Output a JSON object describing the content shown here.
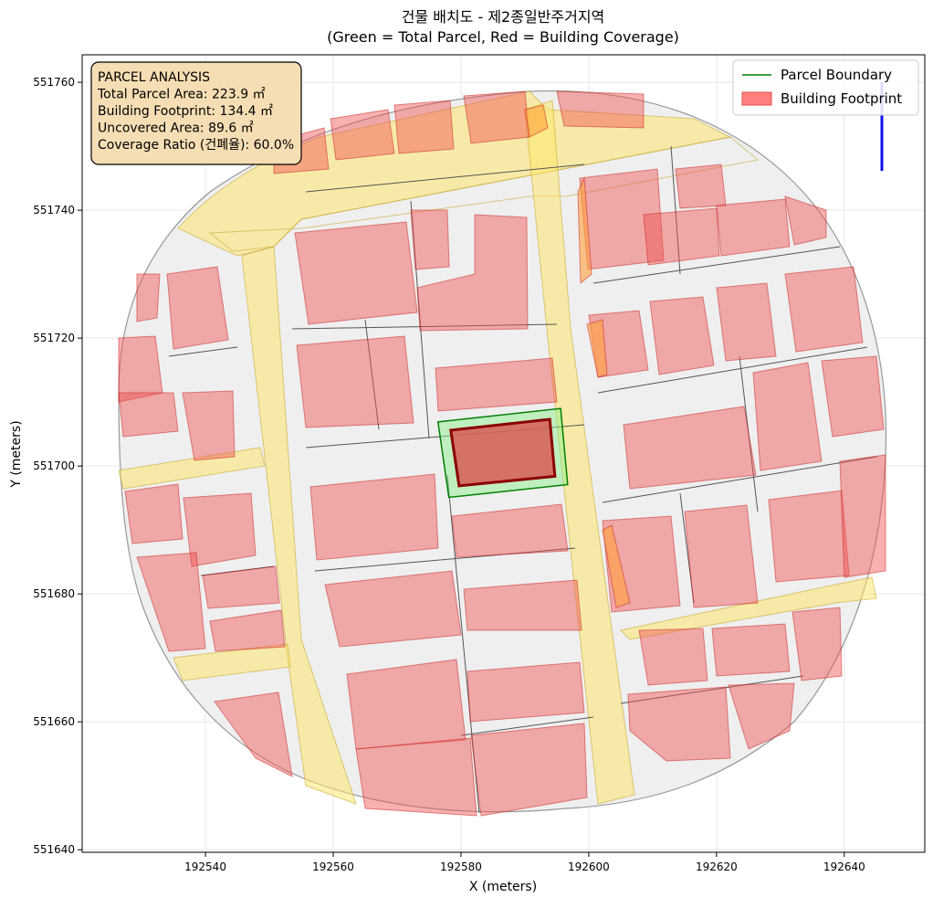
{
  "chart_data": {
    "type": "map",
    "title": [
      "건물 배치도 - 제2종일반주거지역",
      "(Green = Total Parcel, Red = Building Coverage)"
    ],
    "x_label": "X (meters)",
    "y_label": "Y (meters)",
    "xlim": [
      192520.7,
      192652.6
    ],
    "ylim": [
      551639.6,
      551764.3
    ],
    "xticks": [
      192540,
      192560,
      192580,
      192600,
      192620,
      192640
    ],
    "yticks": [
      551640,
      551660,
      551680,
      551700,
      551720,
      551740,
      551760
    ],
    "grid": true,
    "legend": "upper right",
    "series": [
      {
        "name": "Parcel Boundary",
        "color": "#008000",
        "fill": "#90ee90",
        "x": [
          192576.4,
          192595.6,
          192596.7,
          192578.1
        ],
        "y": [
          551706.9,
          551709.0,
          551697.1,
          551695.1
        ]
      },
      {
        "name": "Building Footprint",
        "color": "#8b0000",
        "fill": "#d9534f",
        "x": [
          192578.4,
          192593.9,
          192594.7,
          192579.7
        ],
        "y": [
          551705.6,
          551707.3,
          551698.4,
          551696.9
        ]
      }
    ],
    "annotation": [
      "PARCEL ANALYSIS",
      "Total Parcel Area: 223.9 ㎡",
      "Building Footprint: 134.4 ㎡",
      "Uncovered Area: 89.6 ㎡",
      "Coverage Ratio (건폐율): 60.0%"
    ]
  }
}
